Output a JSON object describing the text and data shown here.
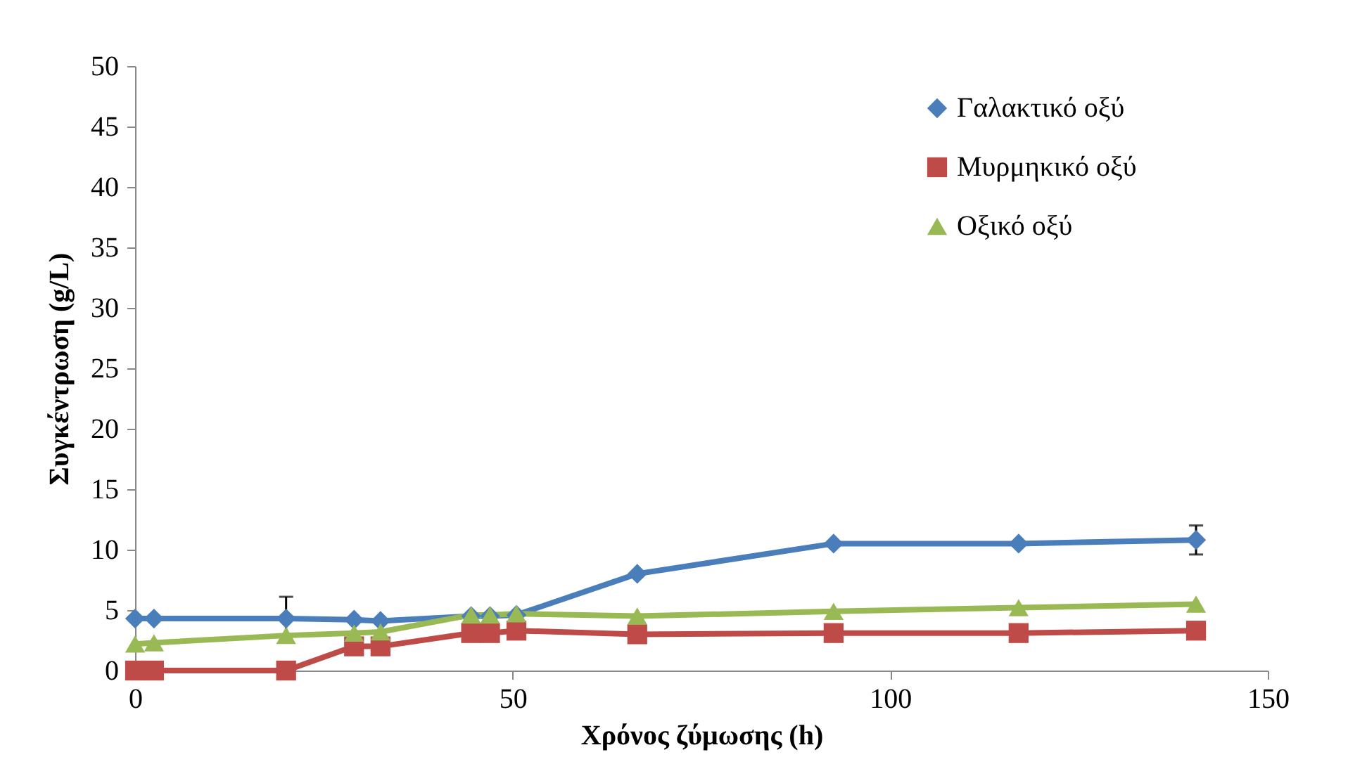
{
  "chart_data": {
    "type": "line",
    "xlabel": "Χρόνος ζύμωσης (h)",
    "ylabel": "Συγκέντρωση (g/L)",
    "x": [
      0,
      2.5,
      20,
      29,
      32.5,
      44.5,
      47,
      50.5,
      66.5,
      92.5,
      117,
      140.5
    ],
    "series": [
      {
        "name": "Γαλακτικό οξύ",
        "color": "#4a7ebb",
        "marker": "diamond",
        "values": [
          4.3,
          4.3,
          4.3,
          4.2,
          4.1,
          4.5,
          4.5,
          4.6,
          8.0,
          10.5,
          10.5,
          10.8
        ],
        "errors": [
          null,
          null,
          1.8,
          null,
          null,
          null,
          null,
          null,
          null,
          null,
          null,
          1.2
        ]
      },
      {
        "name": "Μυρμηκικό οξύ",
        "color": "#be4b48",
        "marker": "square",
        "values": [
          0,
          0,
          0,
          2.0,
          2.0,
          3.1,
          3.1,
          3.3,
          3.0,
          3.1,
          3.1,
          3.3
        ]
      },
      {
        "name": "Οξικό οξύ",
        "color": "#98b954",
        "marker": "triangle",
        "values": [
          2.2,
          2.3,
          2.9,
          3.1,
          3.2,
          4.6,
          4.6,
          4.7,
          4.5,
          4.9,
          5.2,
          5.5
        ]
      }
    ],
    "xlim": [
      0,
      150
    ],
    "xticks": [
      0,
      50,
      100,
      150
    ],
    "ylim": [
      0,
      50
    ],
    "yticks": [
      0,
      5,
      10,
      15,
      20,
      25,
      30,
      35,
      40,
      45,
      50
    ],
    "grid": false,
    "legend": "top right",
    "line_style": "solid"
  }
}
